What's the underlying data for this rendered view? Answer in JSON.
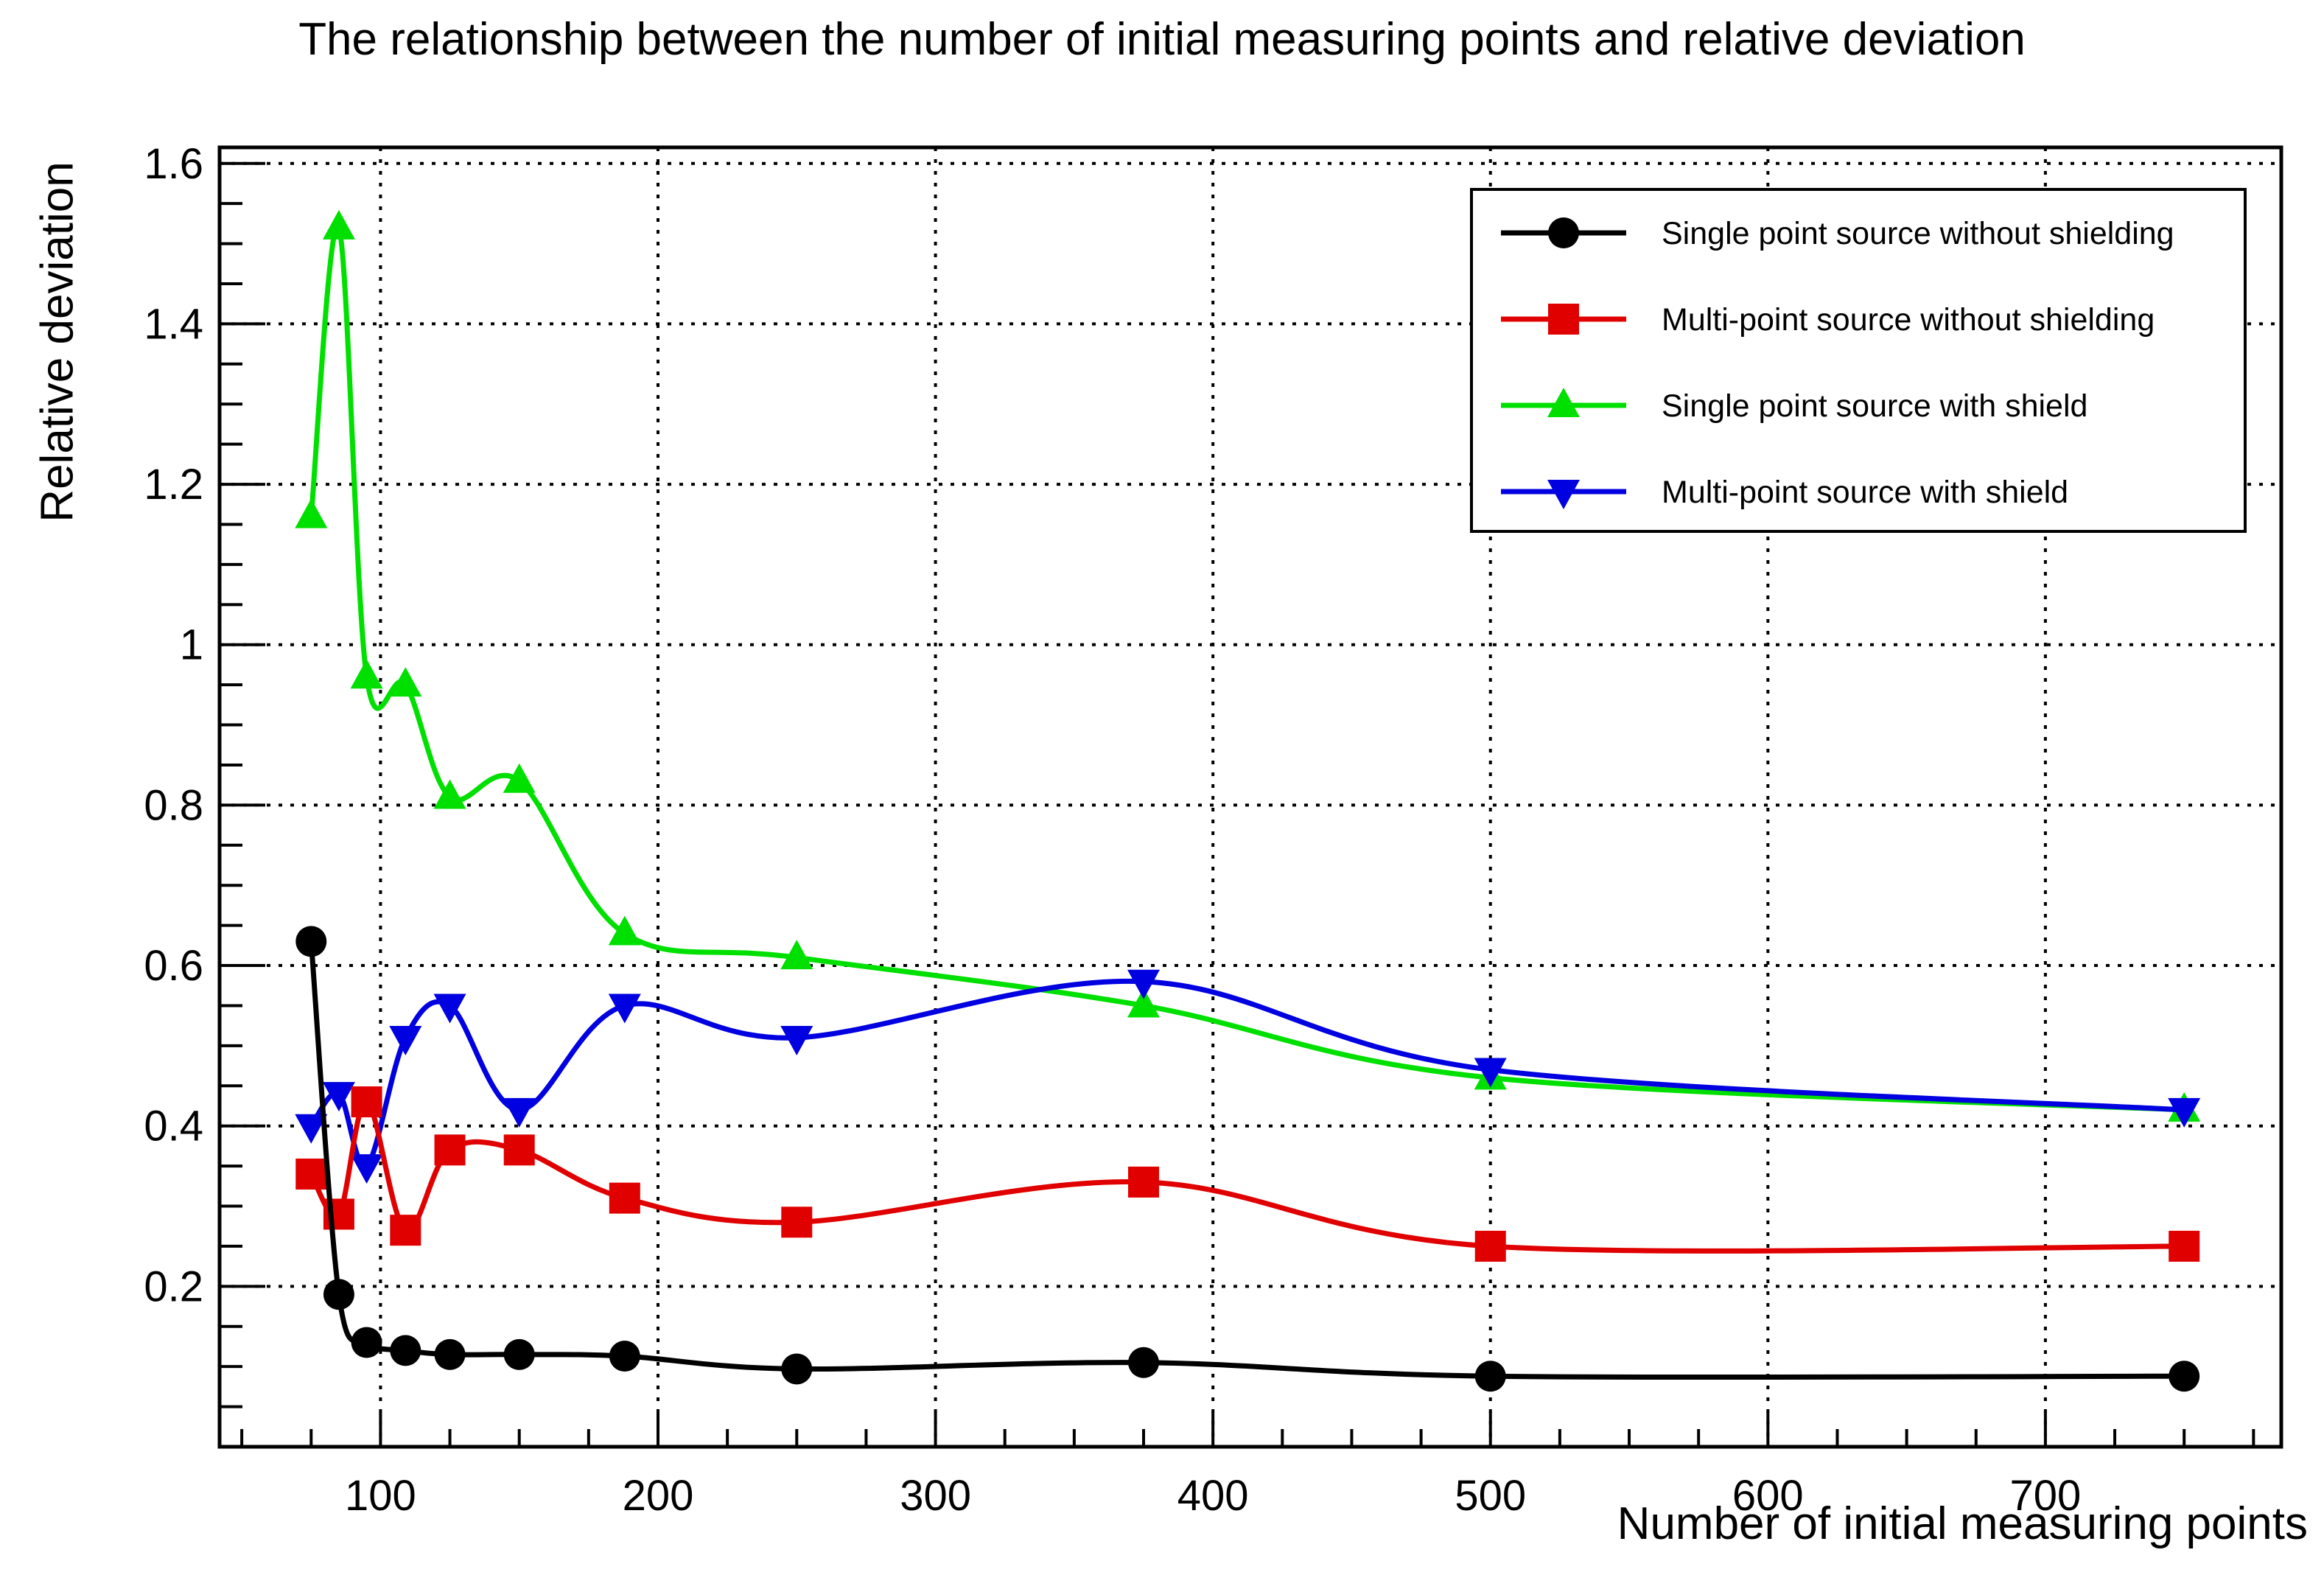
{
  "chart_data": {
    "type": "line",
    "title": "The relationship between the number of initial measuring points and relative deviation",
    "xlabel": "Number of initial measuring points",
    "ylabel": "Relative deviation",
    "xlim": [
      42,
      785
    ],
    "ylim": [
      0.0,
      1.62
    ],
    "x_ticks": [
      100,
      200,
      300,
      400,
      500,
      600,
      700
    ],
    "x_tick_labels": [
      "100",
      "200",
      "300",
      "400",
      "500",
      "600",
      "700"
    ],
    "y_ticks": [
      0.2,
      0.4,
      0.6,
      0.8,
      1.0,
      1.2,
      1.4,
      1.6
    ],
    "y_tick_labels": [
      "0.2",
      "0.4",
      "0.6",
      "0.8",
      "1",
      "1.2",
      "1.4",
      "1.6"
    ],
    "grid": true,
    "legend_position": "top-right",
    "x": [
      75,
      85,
      95,
      109,
      125,
      150,
      188,
      250,
      375,
      500,
      750
    ],
    "series": [
      {
        "name": "Single point source without shielding",
        "color": "#000000",
        "marker": "circle",
        "values": [
          0.63,
          0.19,
          0.13,
          0.12,
          0.115,
          0.115,
          0.113,
          0.097,
          0.105,
          0.088,
          0.088
        ]
      },
      {
        "name": "Multi-point source without shielding",
        "color": "#e00000",
        "marker": "square",
        "values": [
          0.34,
          0.29,
          0.43,
          0.27,
          0.37,
          0.37,
          0.31,
          0.28,
          0.33,
          0.25,
          0.25
        ]
      },
      {
        "name": "Single point source with shield",
        "color": "#00e000",
        "marker": "triangle-up",
        "values": [
          1.16,
          1.52,
          0.96,
          0.95,
          0.81,
          0.83,
          0.64,
          0.61,
          0.55,
          0.46,
          0.42
        ]
      },
      {
        "name": "Multi-point source with shield",
        "color": "#0000e0",
        "marker": "triangle-down",
        "values": [
          0.4,
          0.44,
          0.35,
          0.51,
          0.55,
          0.42,
          0.55,
          0.51,
          0.58,
          0.47,
          0.42
        ]
      }
    ]
  }
}
